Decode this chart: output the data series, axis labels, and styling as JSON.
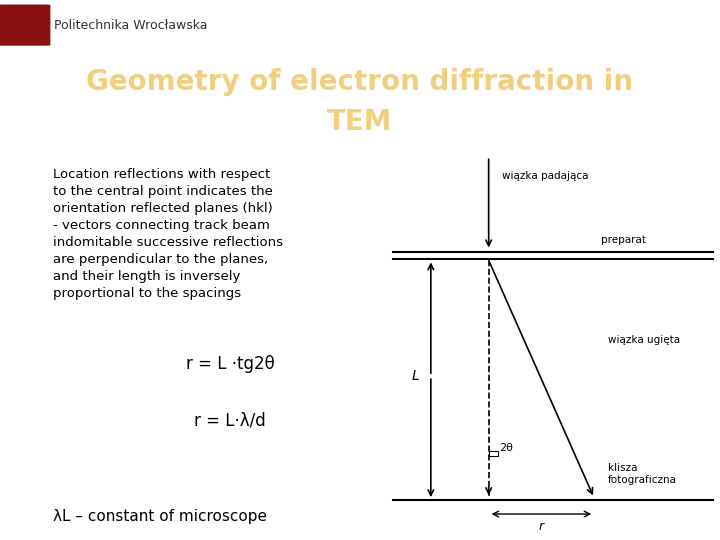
{
  "title_line1": "Geometry of electron diffraction in",
  "title_line2": "TEM",
  "title_bg_color": "#8B1010",
  "title_text_color": "#F0D080",
  "header_bg_color": "#ffffff",
  "header_logo_color": "#8B1010",
  "body_bg_color": "#ffffff",
  "body_text_color": "#000000",
  "left_bar_color": "#8B1010",
  "body_text": "Location reflections with respect\nto the central point indicates the\norientation reflected planes (hkl)\n- vectors connecting track beam\nindomitable successive reflections\nare perpendicular to the planes,\nand their length is inversely\nproportional to the spacings",
  "formula1": "r = L ·tg2θ",
  "formula2": "r = L·λ/d",
  "footer_text": "λL – constant of microscope",
  "diagram_label_incident": "wiązka padająca",
  "diagram_label_specimen": "preparat",
  "diagram_label_diffracted": "wiązka ugięta",
  "diagram_label_film": "klisza\nfotograficzna",
  "diagram_label_angle": "2θ",
  "diagram_label_L": "L",
  "diagram_label_r": "r"
}
